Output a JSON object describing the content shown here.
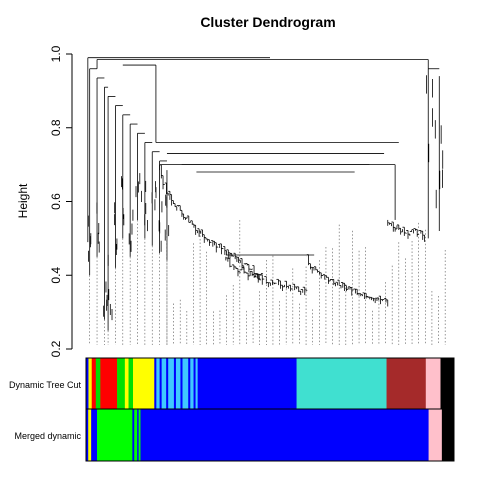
{
  "chart_data": {
    "type": "dendrogram",
    "title": "Cluster Dendrogram",
    "xlabel": "",
    "ylabel": "Height",
    "ylim": [
      0.2,
      1.0
    ],
    "yticks": [
      0.2,
      0.4,
      0.6,
      0.8,
      1.0
    ],
    "ytick_labels": [
      "0.2",
      "0.4",
      "0.6",
      "0.8",
      "1.0"
    ],
    "color_rows": [
      {
        "label": "Dynamic Tree Cut",
        "segments": [
          {
            "color": "#0000ff",
            "fraction": 0.006
          },
          {
            "color": "#ffff00",
            "fraction": 0.008
          },
          {
            "color": "#ff0000",
            "fraction": 0.01
          },
          {
            "color": "#00e000",
            "fraction": 0.011
          },
          {
            "color": "#ff0000",
            "fraction": 0.041
          },
          {
            "color": "#00e000",
            "fraction": 0.019
          },
          {
            "color": "#ffff00",
            "fraction": 0.009
          },
          {
            "color": "#00e000",
            "fraction": 0.011
          },
          {
            "color": "#ffff00",
            "fraction": 0.052
          },
          {
            "color": "#0000ff",
            "fraction": 0.005
          },
          {
            "color": "#40c8ff",
            "fraction": 0.008
          },
          {
            "color": "#0000ff",
            "fraction": 0.005
          },
          {
            "color": "#40c8ff",
            "fraction": 0.011
          },
          {
            "color": "#0000ff",
            "fraction": 0.005
          },
          {
            "color": "#40c8ff",
            "fraction": 0.014
          },
          {
            "color": "#0000ff",
            "fraction": 0.005
          },
          {
            "color": "#40c8ff",
            "fraction": 0.011
          },
          {
            "color": "#0000ff",
            "fraction": 0.005
          },
          {
            "color": "#40c8ff",
            "fraction": 0.014
          },
          {
            "color": "#0000ff",
            "fraction": 0.005
          },
          {
            "color": "#40c8ff",
            "fraction": 0.008
          },
          {
            "color": "#0000ff",
            "fraction": 0.005
          },
          {
            "color": "#40c8ff",
            "fraction": 0.005
          },
          {
            "color": "#0000ff",
            "fraction": 0.242
          },
          {
            "color": "#40e0d0",
            "fraction": 0.22
          },
          {
            "color": "#a52a2a",
            "fraction": 0.096
          },
          {
            "color": "#ffc0cb",
            "fraction": 0.036
          },
          {
            "color": "#000000",
            "fraction": 0.033
          }
        ]
      },
      {
        "label": "Merged dynamic",
        "segments": [
          {
            "color": "#0000ff",
            "fraction": 0.006
          },
          {
            "color": "#ffff00",
            "fraction": 0.008
          },
          {
            "color": "#0000ff",
            "fraction": 0.016
          },
          {
            "color": "#00ff00",
            "fraction": 0.096
          },
          {
            "color": "#0000ff",
            "fraction": 0.005
          },
          {
            "color": "#00ff00",
            "fraction": 0.008
          },
          {
            "color": "#0000ff",
            "fraction": 0.004
          },
          {
            "color": "#00ff00",
            "fraction": 0.005
          },
          {
            "color": "#0000ff",
            "fraction": 0.783
          },
          {
            "color": "#ffc0cb",
            "fraction": 0.036
          },
          {
            "color": "#000000",
            "fraction": 0.033
          }
        ]
      }
    ]
  }
}
